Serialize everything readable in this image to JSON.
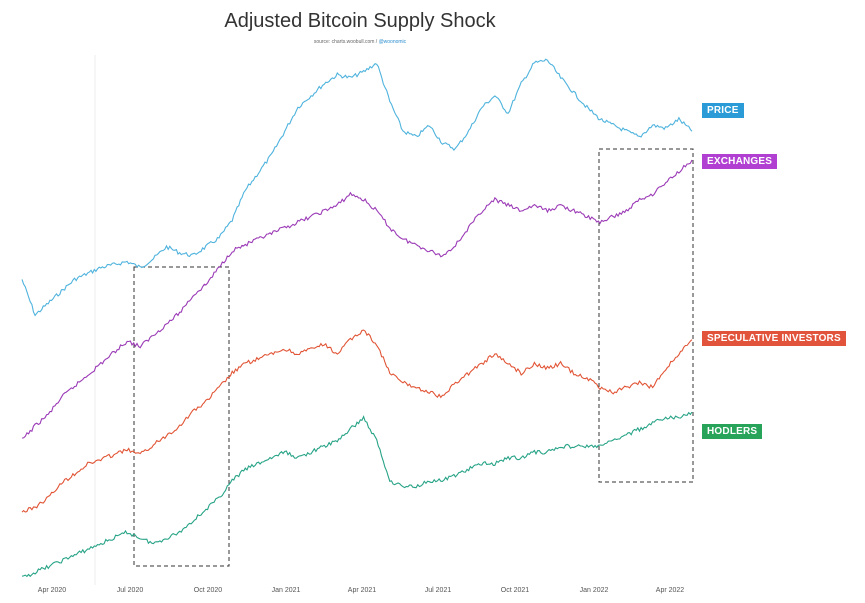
{
  "chart_data": {
    "type": "line",
    "title": "Adjusted Bitcoin Supply Shock",
    "subtitle_prefix": "source: charts.woobull.com / ",
    "subtitle_handle": "@woonomic",
    "x_ticks": [
      "Apr 2020",
      "Jul 2020",
      "Oct 2020",
      "Jan 2021",
      "Apr 2021",
      "Jul 2021",
      "Oct 2021",
      "Jan 2022",
      "Apr 2022"
    ],
    "x": [
      "2020-03-01",
      "2020-03-15",
      "2020-04-01",
      "2020-04-15",
      "2020-05-01",
      "2020-05-15",
      "2020-06-01",
      "2020-06-15",
      "2020-07-01",
      "2020-07-15",
      "2020-08-01",
      "2020-08-15",
      "2020-09-01",
      "2020-09-15",
      "2020-10-01",
      "2020-10-15",
      "2020-11-01",
      "2020-11-15",
      "2020-12-01",
      "2020-12-15",
      "2021-01-01",
      "2021-01-15",
      "2021-02-01",
      "2021-02-15",
      "2021-03-01",
      "2021-03-15",
      "2021-04-01",
      "2021-04-15",
      "2021-05-01",
      "2021-05-15",
      "2021-06-01",
      "2021-06-15",
      "2021-07-01",
      "2021-07-15",
      "2021-08-01",
      "2021-08-15",
      "2021-09-01",
      "2021-09-15",
      "2021-10-01",
      "2021-10-15",
      "2021-11-01",
      "2021-11-15",
      "2021-12-01",
      "2021-12-15",
      "2022-01-01",
      "2022-01-15",
      "2022-02-01",
      "2022-02-15",
      "2022-03-01",
      "2022-03-15",
      "2022-04-01",
      "2022-04-15"
    ],
    "series": [
      {
        "name": "PRICE",
        "color": "#4fb3dd",
        "values": [
          22,
          10,
          14,
          18,
          22,
          24,
          26,
          27,
          28,
          26,
          29,
          33,
          31,
          30,
          33,
          36,
          42,
          52,
          58,
          64,
          72,
          80,
          84,
          88,
          91,
          90,
          92,
          95,
          82,
          72,
          70,
          74,
          68,
          66,
          72,
          80,
          84,
          78,
          88,
          95,
          96,
          90,
          85,
          80,
          76,
          74,
          72,
          70,
          74,
          73,
          76,
          72
        ]
      },
      {
        "name": "EXCHANGES",
        "color": "#9b3ab6",
        "values": [
          5,
          10,
          14,
          20,
          24,
          28,
          32,
          36,
          40,
          38,
          42,
          46,
          50,
          56,
          60,
          66,
          72,
          74,
          76,
          78,
          80,
          82,
          84,
          86,
          88,
          92,
          90,
          86,
          80,
          76,
          74,
          72,
          70,
          74,
          80,
          86,
          90,
          88,
          86,
          88,
          86,
          88,
          86,
          84,
          82,
          84,
          86,
          90,
          92,
          96,
          100,
          104
        ]
      },
      {
        "name": "SPECULATIVE INVESTORS",
        "color": "#e15536",
        "values": [
          4,
          6,
          10,
          16,
          20,
          24,
          26,
          28,
          30,
          28,
          32,
          36,
          40,
          46,
          50,
          56,
          62,
          66,
          68,
          70,
          72,
          70,
          72,
          74,
          70,
          76,
          80,
          74,
          62,
          58,
          56,
          54,
          52,
          58,
          62,
          66,
          70,
          66,
          62,
          66,
          64,
          66,
          62,
          60,
          56,
          54,
          56,
          58,
          56,
          64,
          70,
          76
        ]
      },
      {
        "name": "HODLERS",
        "color": "#27a387",
        "values": [
          2,
          4,
          6,
          8,
          10,
          12,
          14,
          16,
          18,
          16,
          14,
          16,
          18,
          22,
          26,
          30,
          36,
          40,
          42,
          44,
          46,
          44,
          46,
          48,
          50,
          54,
          58,
          50,
          36,
          34,
          34,
          36,
          36,
          38,
          40,
          42,
          42,
          44,
          44,
          46,
          46,
          48,
          48,
          48,
          48,
          50,
          52,
          54,
          56,
          58,
          58,
          60
        ]
      }
    ],
    "legend": "right"
  },
  "labels": {
    "price": "PRICE",
    "exchanges": "EXCHANGES",
    "spec": "SPECULATIVE INVESTORS",
    "hodlers": "HODLERS"
  }
}
